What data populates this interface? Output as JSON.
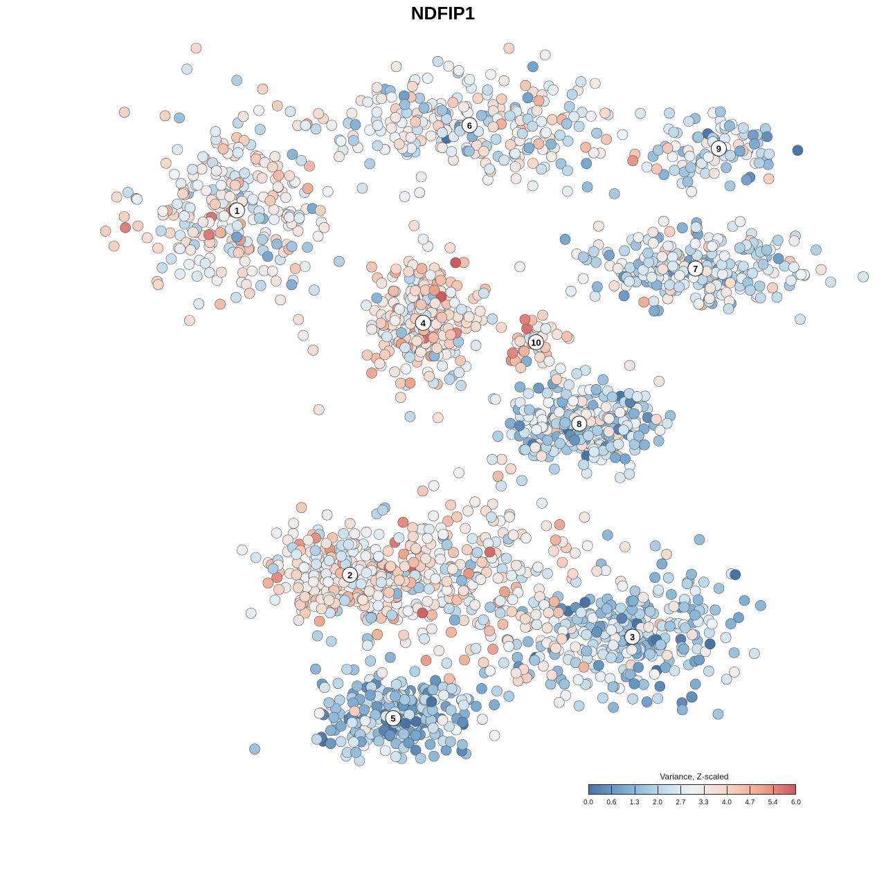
{
  "chart_data": {
    "type": "scatter",
    "title": "NDFIP1",
    "colorbar": {
      "title": "Variance, Z-scaled",
      "ticks": [
        "0.0",
        "0.6",
        "1.3",
        "2.0",
        "2.7",
        "3.3",
        "4.0",
        "4.7",
        "5.4",
        "6.0"
      ],
      "range": [
        0,
        6
      ],
      "palette": [
        "#4a73a5",
        "#7aa9d0",
        "#b9d6e8",
        "#eef3f6",
        "#f6d6c8",
        "#eea78f",
        "#cd5a60"
      ]
    },
    "clusters": [
      {
        "label": "1",
        "x": -0.62,
        "y": 0.6,
        "spread": [
          0.14,
          0.13
        ],
        "mean": 3.2
      },
      {
        "label": "2",
        "x": -0.28,
        "y": -0.34,
        "spread": [
          0.12,
          0.06
        ],
        "mean": 3.3
      },
      {
        "label": "3",
        "x": 0.57,
        "y": -0.5,
        "spread": [
          0.15,
          0.09
        ],
        "mean": 1.9
      },
      {
        "label": "4",
        "x": -0.06,
        "y": 0.31,
        "spread": [
          0.08,
          0.08
        ],
        "mean": 3.6
      },
      {
        "label": "5",
        "x": -0.15,
        "y": -0.71,
        "spread": [
          0.13,
          0.08
        ],
        "mean": 1.6
      },
      {
        "label": "6",
        "x": 0.08,
        "y": 0.82,
        "spread": [
          0.23,
          0.07
        ],
        "mean": 2.9
      },
      {
        "label": "7",
        "x": 0.76,
        "y": 0.45,
        "spread": [
          0.16,
          0.05
        ],
        "mean": 2.5
      },
      {
        "label": "8",
        "x": 0.41,
        "y": 0.05,
        "spread": [
          0.12,
          0.05
        ],
        "mean": 2.2
      },
      {
        "label": "9",
        "x": 0.83,
        "y": 0.76,
        "spread": [
          0.1,
          0.04
        ],
        "mean": 2.3
      },
      {
        "label": "10",
        "x": 0.28,
        "y": 0.26,
        "spread": [
          0.04,
          0.04
        ],
        "mean": 3.8
      },
      {
        "label": "",
        "x": 0.1,
        "y": -0.35,
        "spread": [
          0.18,
          0.12
        ],
        "mean": 3.4
      }
    ]
  }
}
